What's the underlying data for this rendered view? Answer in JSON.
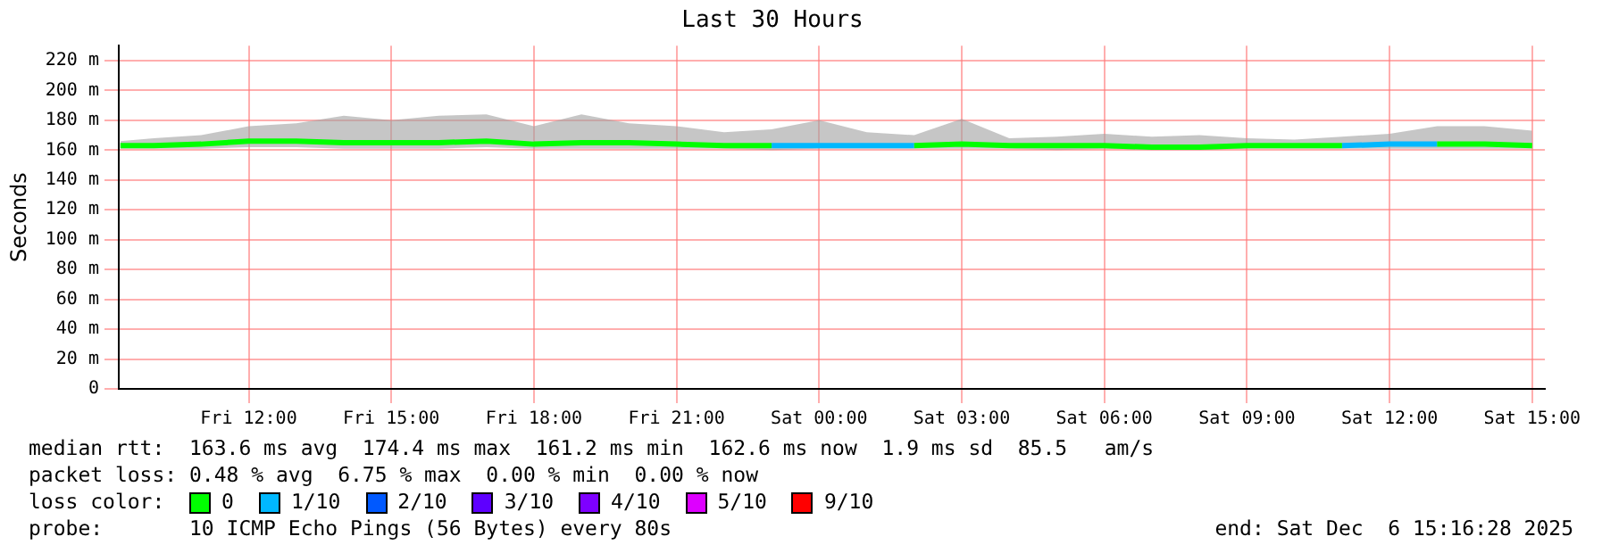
{
  "chart_data": {
    "type": "line",
    "title": "Last 30 Hours",
    "ylabel": "Seconds",
    "legend_title": "loss color:",
    "legend": "bottom",
    "grid": true,
    "x": [
      "2025-12-05T09:18",
      "2025-12-05T10:00",
      "2025-12-05T11:00",
      "2025-12-05T12:00",
      "2025-12-05T13:00",
      "2025-12-05T14:00",
      "2025-12-05T15:00",
      "2025-12-05T16:00",
      "2025-12-05T17:00",
      "2025-12-05T18:00",
      "2025-12-05T19:00",
      "2025-12-05T20:00",
      "2025-12-05T21:00",
      "2025-12-05T22:00",
      "2025-12-05T23:00",
      "2025-12-06T00:00",
      "2025-12-06T01:00",
      "2025-12-06T02:00",
      "2025-12-06T03:00",
      "2025-12-06T04:00",
      "2025-12-06T05:00",
      "2025-12-06T06:00",
      "2025-12-06T07:00",
      "2025-12-06T08:00",
      "2025-12-06T09:00",
      "2025-12-06T10:00",
      "2025-12-06T11:00",
      "2025-12-06T12:00",
      "2025-12-06T13:00",
      "2025-12-06T14:00",
      "2025-12-06T15:00"
    ],
    "xlim": [
      "2025-12-05T09:16",
      "2025-12-06T15:16"
    ],
    "xticks": [
      {
        "value": "2025-12-05T12:00",
        "label": "Fri 12:00"
      },
      {
        "value": "2025-12-05T15:00",
        "label": "Fri 15:00"
      },
      {
        "value": "2025-12-05T18:00",
        "label": "Fri 18:00"
      },
      {
        "value": "2025-12-05T21:00",
        "label": "Fri 21:00"
      },
      {
        "value": "2025-12-06T00:00",
        "label": "Sat 00:00"
      },
      {
        "value": "2025-12-06T03:00",
        "label": "Sat 03:00"
      },
      {
        "value": "2025-12-06T06:00",
        "label": "Sat 06:00"
      },
      {
        "value": "2025-12-06T09:00",
        "label": "Sat 09:00"
      },
      {
        "value": "2025-12-06T12:00",
        "label": "Sat 12:00"
      },
      {
        "value": "2025-12-06T15:00",
        "label": "Sat 15:00"
      }
    ],
    "ylim": [
      0,
      230
    ],
    "yticks": [
      0,
      {
        "value": 20,
        "label": "20 m"
      },
      {
        "value": 40,
        "label": "40 m"
      },
      {
        "value": 60,
        "label": "60 m"
      },
      {
        "value": 80,
        "label": "80 m"
      },
      {
        "value": 100,
        "label": "100 m"
      },
      {
        "value": 120,
        "label": "120 m"
      },
      {
        "value": 140,
        "label": "140 m"
      },
      {
        "value": 160,
        "label": "160 m"
      },
      {
        "value": 180,
        "label": "180 m"
      },
      {
        "value": 200,
        "label": "200 m"
      },
      {
        "value": 220,
        "label": "220 m"
      }
    ],
    "series": [
      {
        "name": "0",
        "color": "#00ff00",
        "values": [
          163,
          163,
          164,
          166,
          166,
          165,
          165,
          165,
          166,
          164,
          165,
          165,
          164,
          163,
          163,
          null,
          null,
          163,
          164,
          163,
          163,
          163,
          162,
          162,
          163,
          163,
          163,
          null,
          164,
          164,
          163
        ],
        "lower": [
          161,
          161,
          161,
          162,
          162,
          161,
          161,
          161,
          162,
          161,
          161,
          161,
          161,
          161,
          160,
          161,
          161,
          161,
          161,
          161,
          160,
          161,
          160,
          160,
          161,
          161,
          161,
          161,
          161,
          161,
          161
        ],
        "upper": [
          166,
          168,
          170,
          176,
          178,
          183,
          180,
          183,
          184,
          176,
          184,
          178,
          176,
          172,
          174,
          180,
          172,
          170,
          181,
          168,
          169,
          171,
          169,
          170,
          168,
          167,
          169,
          171,
          176,
          176,
          173
        ]
      },
      {
        "name": "1/10",
        "color": "#00b8ff",
        "values": [
          null,
          null,
          null,
          null,
          null,
          null,
          null,
          null,
          null,
          null,
          null,
          null,
          null,
          null,
          163,
          163,
          163,
          163,
          null,
          null,
          null,
          null,
          null,
          null,
          null,
          null,
          163,
          164,
          164,
          null,
          null
        ]
      },
      {
        "name": "2/10",
        "color": "#0059ff",
        "values": [
          null,
          null,
          null,
          null,
          null,
          null,
          null,
          null,
          null,
          null,
          null,
          null,
          null,
          null,
          null,
          null,
          null,
          null,
          null,
          null,
          null,
          null,
          null,
          null,
          null,
          null,
          null,
          null,
          null,
          null,
          null
        ]
      },
      {
        "name": "3/10",
        "color": "#5e00ff",
        "values": [
          null,
          null,
          null,
          null,
          null,
          null,
          null,
          null,
          null,
          null,
          null,
          null,
          null,
          null,
          null,
          null,
          null,
          null,
          null,
          null,
          null,
          null,
          null,
          null,
          null,
          null,
          null,
          null,
          null,
          null,
          null
        ]
      },
      {
        "name": "4/10",
        "color": "#7e00ff",
        "values": [
          null,
          null,
          null,
          null,
          null,
          null,
          null,
          null,
          null,
          null,
          null,
          null,
          null,
          null,
          null,
          null,
          null,
          null,
          null,
          null,
          null,
          null,
          null,
          null,
          null,
          null,
          null,
          null,
          null,
          null,
          null
        ]
      },
      {
        "name": "5/10",
        "color": "#dd00ff",
        "values": [
          null,
          null,
          null,
          null,
          null,
          null,
          null,
          null,
          null,
          null,
          null,
          null,
          null,
          null,
          null,
          null,
          null,
          null,
          null,
          null,
          null,
          null,
          null,
          null,
          null,
          null,
          null,
          null,
          null,
          null,
          null
        ]
      },
      {
        "name": "9/10",
        "color": "#ff0000",
        "values": [
          null,
          null,
          null,
          null,
          null,
          null,
          null,
          null,
          null,
          null,
          null,
          null,
          null,
          null,
          null,
          null,
          null,
          null,
          null,
          null,
          null,
          null,
          null,
          null,
          null,
          null,
          null,
          null,
          null,
          null,
          null
        ]
      }
    ],
    "annotations": [
      "median rtt:  163.6 ms avg  174.4 ms max  161.2 ms min  162.6 ms now  1.9 ms sd  85.5   am/s",
      "packet loss: 0.48 % avg  6.75 % max  0.00 % min  0.00 % now",
      "probe:       10 ICMP Echo Pings (56 Bytes) every 80s",
      "end: Sat Dec  6 15:16:28 2025"
    ]
  }
}
